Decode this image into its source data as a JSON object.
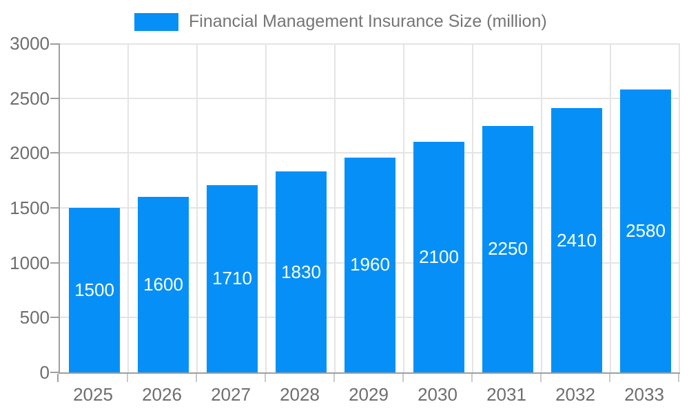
{
  "legend": {
    "label": "Financial Management Insurance Size (million)"
  },
  "colors": {
    "bar": "#0690f7",
    "grid": "#e4e4e4",
    "axis": "#9e9e9e",
    "minor_tick": "#c9c9c9",
    "axis_text": "#6e6e6e",
    "legend_text": "#757575",
    "bar_label": "#ffffff",
    "background": "#ffffff"
  },
  "chart_data": {
    "type": "bar",
    "title": "Financial Management Insurance Size (million)",
    "categories": [
      "2025",
      "2026",
      "2027",
      "2028",
      "2029",
      "2030",
      "2031",
      "2032",
      "2033"
    ],
    "series": [
      {
        "name": "Financial Management Insurance Size (million)",
        "values": [
          1500,
          1600,
          1710,
          1830,
          1960,
          2100,
          2250,
          2410,
          2580
        ]
      }
    ],
    "xlabel": "",
    "ylabel": "",
    "ylim": [
      0,
      3000
    ],
    "yticks": [
      0,
      500,
      1000,
      1500,
      2000,
      2500,
      3000
    ],
    "grid": true,
    "legend_position": "top",
    "value_labels": "inside-center"
  }
}
